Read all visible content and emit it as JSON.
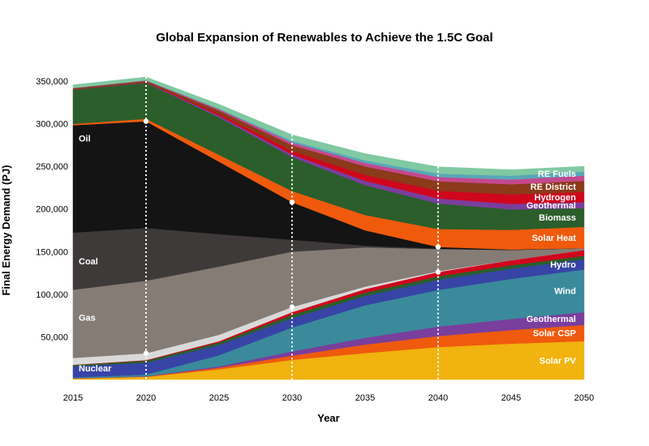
{
  "chart_data": {
    "type": "area",
    "title": "Global Expansion of Renewables to Achieve the 1.5C Goal",
    "xlabel": "Year",
    "ylabel": "Final Energy Demand (PJ)",
    "x": [
      2015,
      2020,
      2025,
      2030,
      2035,
      2040,
      2045,
      2050
    ],
    "xlim": [
      2015,
      2050
    ],
    "ylim": [
      0,
      350000
    ],
    "x_ticks": [
      "2015",
      "2020",
      "2025",
      "2030",
      "2035",
      "2040",
      "2045",
      "2050"
    ],
    "y_ticks": [
      {
        "value": 50000,
        "label": "50,000"
      },
      {
        "value": 100000,
        "label": "100,000"
      },
      {
        "value": 150000,
        "label": "150,000"
      },
      {
        "value": 200000,
        "label": "200,000"
      },
      {
        "value": 250000,
        "label": "250,000"
      },
      {
        "value": 300000,
        "label": "300,000"
      },
      {
        "value": 350000,
        "label": "350,000"
      }
    ],
    "grid": false,
    "legend": "inline labels",
    "series": [
      {
        "name": "Solar PV",
        "color": "#f0b30f",
        "values": [
          1000,
          3000,
          12000,
          23000,
          31000,
          38000,
          42000,
          45000
        ],
        "label_at": "end"
      },
      {
        "name": "Solar CSP",
        "color": "#ef5a0d",
        "values": [
          300,
          500,
          2000,
          5000,
          10000,
          13000,
          16000,
          19000
        ],
        "label_at": "end"
      },
      {
        "name": "Geothermal",
        "color": "#7a3e9d",
        "values": [
          200,
          300,
          1500,
          5000,
          8000,
          11000,
          13000,
          15000
        ],
        "label_at": "end"
      },
      {
        "name": "Wind",
        "color": "#3a8a9c",
        "values": [
          1000,
          2000,
          13000,
          28000,
          38000,
          43000,
          47000,
          50000
        ],
        "label_at": "end"
      },
      {
        "name": "Hydro",
        "color": "#3744a6",
        "values": [
          13000,
          14000,
          12000,
          11000,
          11000,
          12000,
          12000,
          12000
        ],
        "label_at": "end"
      },
      {
        "name": "",
        "color": "#2b5e2b",
        "values": [
          1500,
          2500,
          3000,
          4000,
          4000,
          4000,
          4000,
          4000
        ]
      },
      {
        "name": "",
        "color": "#d0061d",
        "values": [
          300,
          500,
          1500,
          3000,
          4000,
          5000,
          6000,
          7000
        ]
      },
      {
        "name": "Nuclear",
        "color": "#d9d9d9",
        "values": [
          8000,
          8000,
          7500,
          6000,
          3000,
          1000,
          0,
          0
        ],
        "label_at": "start"
      },
      {
        "name": "Gas",
        "color": "#857c76",
        "values": [
          80000,
          85000,
          80000,
          65000,
          46000,
          26000,
          12000,
          2000
        ],
        "label_at": "start"
      },
      {
        "name": "Coal",
        "color": "#3f3a3a",
        "values": [
          67000,
          62000,
          38000,
          14000,
          2000,
          500,
          0,
          0
        ],
        "label_at": "start"
      },
      {
        "name": "Oil",
        "color": "#141414",
        "values": [
          126000,
          125000,
          85000,
          44000,
          18000,
          2000,
          500,
          0
        ],
        "label_at": "start"
      },
      {
        "name": "Solar Heat",
        "color": "#ef5a0d",
        "values": [
          1500,
          3000,
          8000,
          13000,
          18000,
          21000,
          23000,
          25000
        ],
        "label_at": "end"
      },
      {
        "name": "Biomass",
        "color": "#2b5e2b",
        "values": [
          40000,
          42000,
          44000,
          40000,
          35000,
          30000,
          24000,
          22000
        ],
        "label_at": "end"
      },
      {
        "name": "Geothermal",
        "color": "#7a3e9d",
        "values": [
          300,
          500,
          2000,
          3000,
          5000,
          6000,
          6500,
          7000
        ],
        "label_at": "end"
      },
      {
        "name": "Hydrogen",
        "color": "#d0061d",
        "values": [
          0,
          0,
          2000,
          4000,
          7000,
          9000,
          11000,
          12000
        ],
        "label_at": "end"
      },
      {
        "name": "RE District",
        "color": "#8b3a1a",
        "values": [
          1500,
          2000,
          4000,
          7000,
          10000,
          11000,
          12000,
          13000
        ],
        "label_at": "end"
      },
      {
        "name": "",
        "color": "#c5488f",
        "values": [
          300,
          500,
          1500,
          3000,
          4000,
          5000,
          5500,
          6000
        ]
      },
      {
        "name": "RE Fuels",
        "color": "#5aa6b8",
        "values": [
          200,
          300,
          800,
          2000,
          3000,
          4000,
          4500,
          5000
        ],
        "label_at": "end"
      },
      {
        "name": "",
        "color": "#80c9a2",
        "values": [
          3500,
          3700,
          5000,
          7000,
          8000,
          8000,
          7000,
          6000
        ]
      }
    ],
    "reference_years": [
      2020,
      2030,
      2040
    ]
  }
}
